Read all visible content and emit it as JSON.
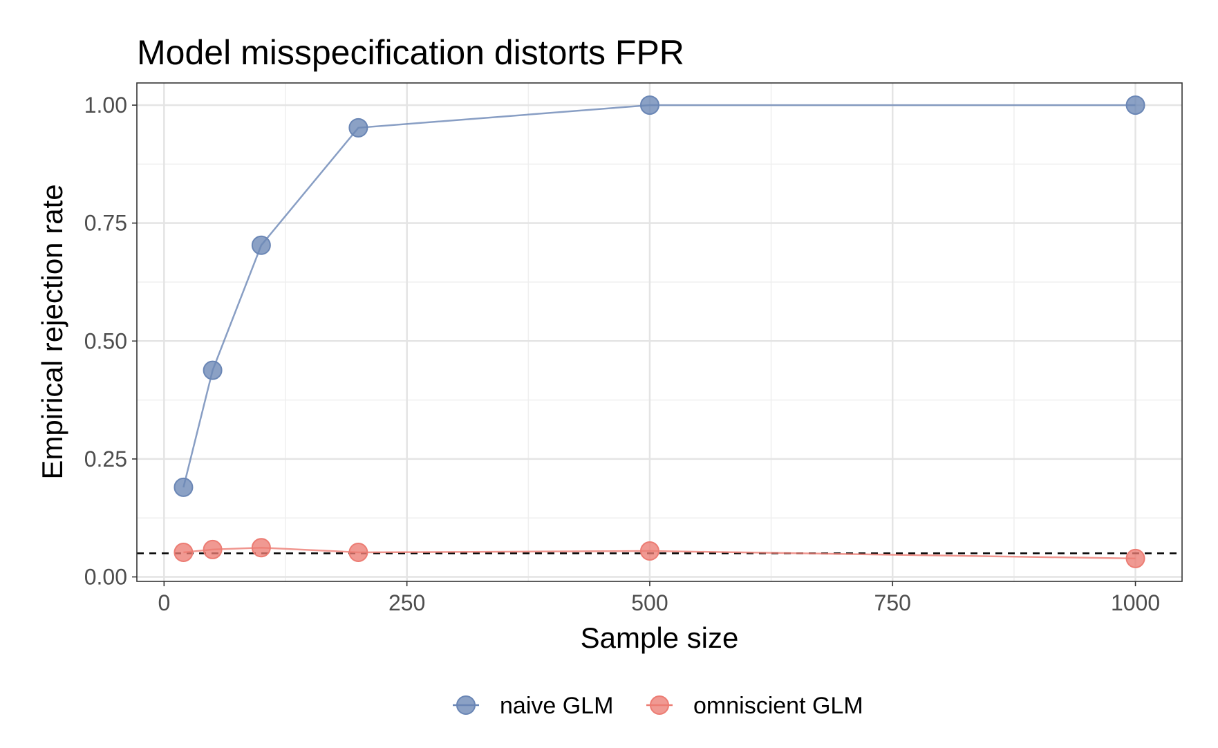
{
  "chart_data": {
    "type": "line",
    "title": "Model misspecification distorts FPR",
    "xlabel": "Sample size",
    "ylabel": "Empirical rejection rate",
    "x": [
      20,
      50,
      100,
      200,
      500,
      1000
    ],
    "xlim": [
      -28,
      1048
    ],
    "ylim": [
      -0.0095,
      1.047
    ],
    "xticks": [
      0,
      250,
      500,
      750,
      1000
    ],
    "xtick_labels": [
      "0",
      "250",
      "500",
      "750",
      "1000"
    ],
    "xminor": [
      125,
      375,
      625,
      875
    ],
    "yticks": [
      0,
      0.25,
      0.5,
      0.75,
      1.0
    ],
    "ytick_labels": [
      "0.00",
      "0.25",
      "0.50",
      "0.75",
      "1.00"
    ],
    "yminor": [
      0.125,
      0.375,
      0.625,
      0.875
    ],
    "reference_line": {
      "y": 0.05,
      "style": "dashed",
      "color": "#000000"
    },
    "series": [
      {
        "name": "naive GLM",
        "color": "#6a86b5",
        "values": [
          0.19,
          0.438,
          0.703,
          0.952,
          1.0,
          1.0
        ]
      },
      {
        "name": "omniscient GLM",
        "color": "#ec7c73",
        "values": [
          0.052,
          0.058,
          0.062,
          0.052,
          0.055,
          0.039
        ]
      }
    ],
    "grid": true,
    "legend_position": "bottom"
  }
}
